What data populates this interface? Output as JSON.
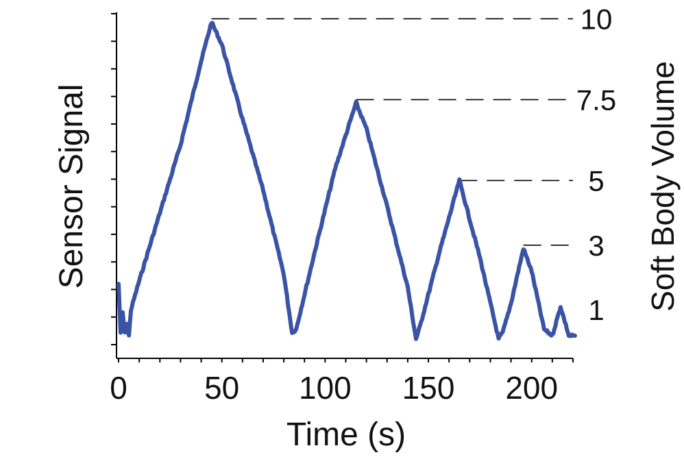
{
  "chart_data": {
    "type": "line",
    "xlabel": "Time (s)",
    "ylabel_left": "Sensor Signal",
    "ylabel_right": "Soft Body Volume",
    "x_ticks": [
      "0",
      "50",
      "100",
      "150",
      "200"
    ],
    "x_tick_values": [
      0,
      50,
      100,
      150,
      200
    ],
    "xlim": [
      -1,
      220
    ],
    "ylim": [
      -0.5,
      10.2
    ],
    "right_ticks": [
      "10",
      "7.5",
      "5",
      "3",
      "1"
    ],
    "right_tick_values": [
      10,
      7.5,
      5,
      3,
      1
    ],
    "line_color": "#3a53a4",
    "reference_lines": [
      {
        "label": "10",
        "level": 10,
        "x_start": 45
      },
      {
        "label": "7.5",
        "level": 7.5,
        "x_start": 115
      },
      {
        "label": "5",
        "level": 5,
        "x_start": 165
      },
      {
        "label": "3",
        "level": 3,
        "x_start": 196
      }
    ],
    "series": [
      {
        "x": [
          0,
          1,
          2,
          3,
          4,
          5,
          6,
          10,
          20,
          30,
          40,
          45,
          50,
          60,
          70,
          80,
          84,
          86,
          95,
          105,
          115,
          120,
          130,
          140,
          144,
          146,
          155,
          165,
          175,
          184,
          186,
          190,
          196,
          200,
          206,
          210,
          214,
          218,
          221
        ],
        "y": [
          1.8,
          0.3,
          0.9,
          0.3,
          0.6,
          0.2,
          1.0,
          1.9,
          4.0,
          6.1,
          8.7,
          9.9,
          9.2,
          6.9,
          4.7,
          2.1,
          0.3,
          0.4,
          2.8,
          5.4,
          7.4,
          6.6,
          4.2,
          1.7,
          0.1,
          0.5,
          2.7,
          5.0,
          2.6,
          0.1,
          0.3,
          1.2,
          2.9,
          2.2,
          0.4,
          0.2,
          1.1,
          0.2,
          0.2
        ]
      }
    ]
  }
}
